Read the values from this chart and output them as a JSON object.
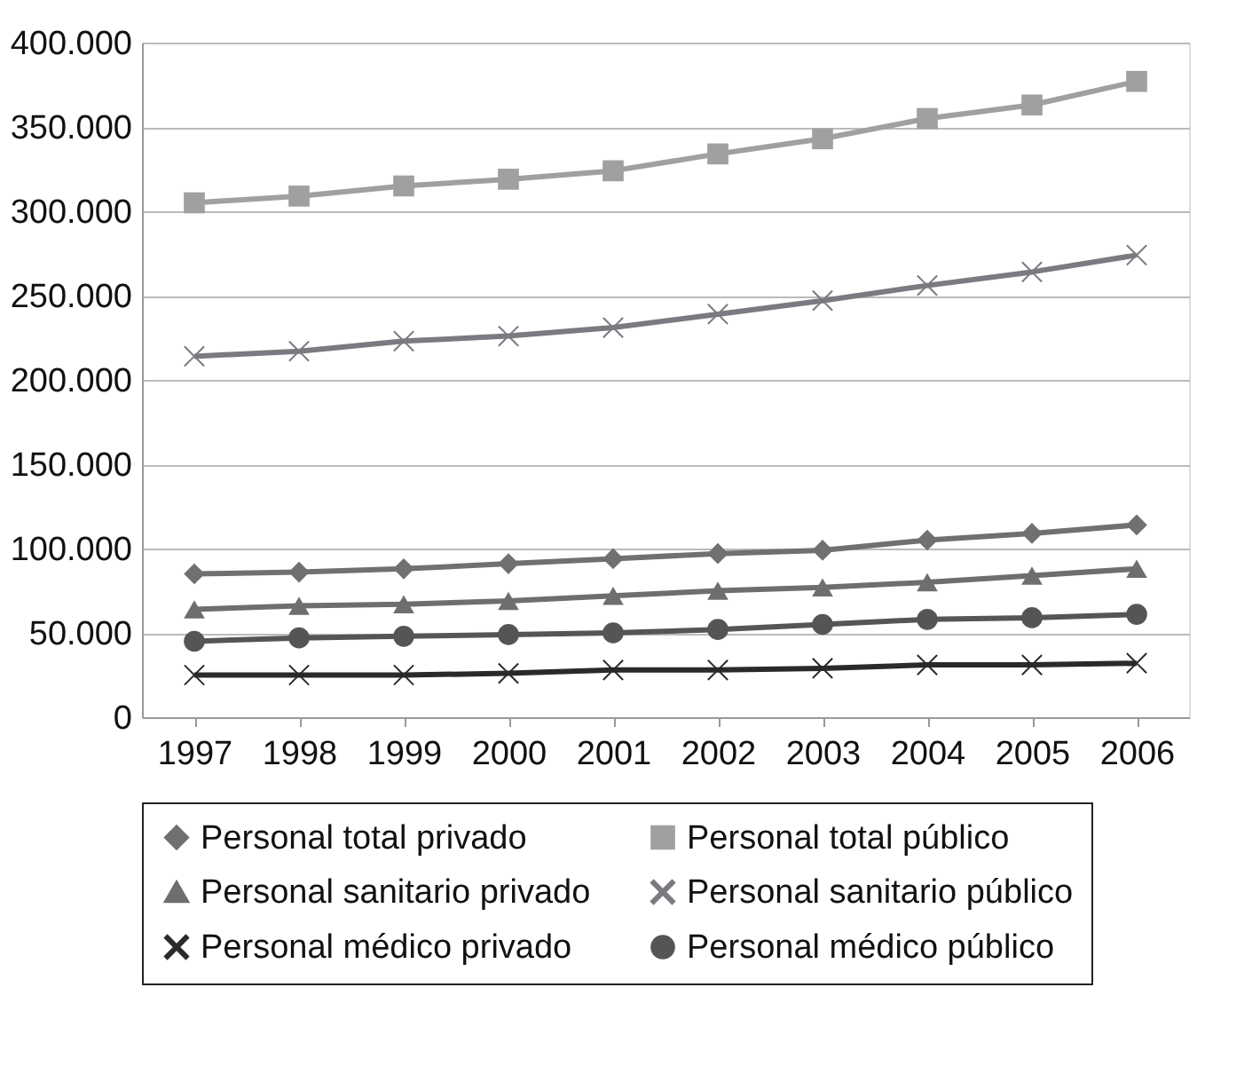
{
  "chart_data": {
    "type": "line",
    "categories": [
      "1997",
      "1998",
      "1999",
      "2000",
      "2001",
      "2002",
      "2003",
      "2004",
      "2005",
      "2006"
    ],
    "series": [
      {
        "name": "Personal total privado",
        "color": "#707070",
        "marker": "diamond",
        "values": [
          85000,
          86000,
          88000,
          91000,
          94000,
          97000,
          99000,
          105000,
          109000,
          114000
        ]
      },
      {
        "name": "Personal total público",
        "color": "#a0a0a0",
        "marker": "square",
        "values": [
          305000,
          309000,
          315000,
          319000,
          324000,
          334000,
          343000,
          355000,
          363000,
          377000
        ]
      },
      {
        "name": "Personal sanitario privado",
        "color": "#6e6e6e",
        "marker": "triangle",
        "values": [
          64000,
          66000,
          67000,
          69000,
          72000,
          75000,
          77000,
          80000,
          84000,
          88000
        ]
      },
      {
        "name": "Personal sanitario público",
        "color": "#7a7a80",
        "marker": "cross",
        "values": [
          214000,
          217000,
          223000,
          226000,
          231000,
          239000,
          247000,
          256000,
          264000,
          274000
        ]
      },
      {
        "name": "Personal médico privado",
        "color": "#2a2a2a",
        "marker": "cross",
        "values": [
          25000,
          25000,
          25000,
          26000,
          28000,
          28000,
          29000,
          31000,
          31000,
          32000
        ]
      },
      {
        "name": "Personal médico público",
        "color": "#555555",
        "marker": "circle",
        "values": [
          45000,
          47000,
          48000,
          49000,
          50000,
          52000,
          55000,
          58000,
          59000,
          61000
        ]
      }
    ],
    "ylim": [
      0,
      400000
    ],
    "yticks": [
      {
        "value": 0,
        "label": "0"
      },
      {
        "value": 50000,
        "label": "50.000"
      },
      {
        "value": 100000,
        "label": "100.000"
      },
      {
        "value": 150000,
        "label": "150.000"
      },
      {
        "value": 200000,
        "label": "200.000"
      },
      {
        "value": 250000,
        "label": "250.000"
      },
      {
        "value": 300000,
        "label": "300.000"
      },
      {
        "value": 350000,
        "label": "350.000"
      },
      {
        "value": 400000,
        "label": "400.000"
      }
    ],
    "grid": "y",
    "legend": "bottom",
    "line_style": "solid"
  }
}
